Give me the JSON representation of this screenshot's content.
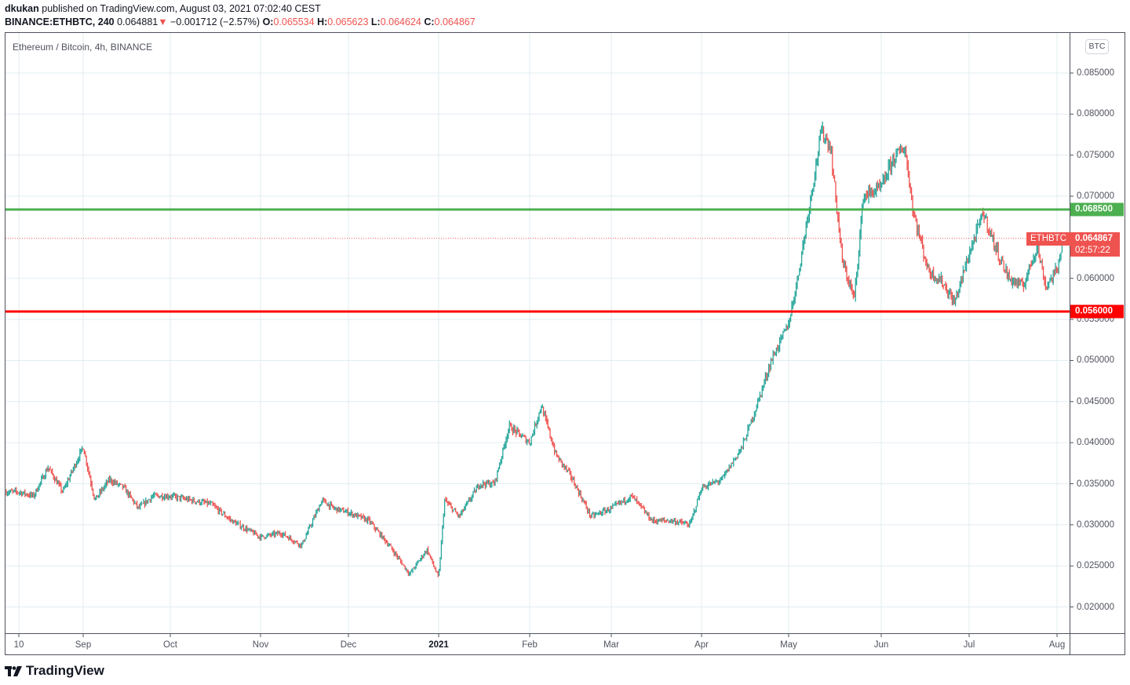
{
  "header": {
    "author": "dkukan",
    "published_text": "published on TradingView.com, August 03, 2021 07:02:40 CEST",
    "symbol": "BINANCE:ETHBTC, 240",
    "last": "0.064881",
    "change_arrow": "▼",
    "change": "−0.001712 (−2.57%)",
    "o_label": "O:",
    "o": "0.065534",
    "h_label": "H:",
    "h": "0.065623",
    "l_label": "L:",
    "l": "0.064624",
    "c_label": "C:",
    "c": "0.064867"
  },
  "legend": {
    "title": "Ethereum / Bitcoin, 4h, BINANCE"
  },
  "price_axis": {
    "currency": "BTC",
    "ticks": [
      "0.085000",
      "0.080000",
      "0.075000",
      "0.070000",
      "0.060000",
      "0.055000",
      "0.050000",
      "0.045000",
      "0.040000",
      "0.035000",
      "0.030000",
      "0.025000",
      "0.020000"
    ]
  },
  "time_axis": {
    "ticks": [
      "10",
      "Sep",
      "Oct",
      "Nov",
      "Dec",
      "2021",
      "Feb",
      "Mar",
      "Apr",
      "May",
      "Jun",
      "Jul",
      "Aug"
    ]
  },
  "levels": {
    "resistance": {
      "value": "0.068500",
      "color": "#4caf50"
    },
    "support": {
      "value": "0.056000",
      "color": "#ff0000"
    }
  },
  "current_price": {
    "symbol_tag": "ETHBTC",
    "price": "0.064867",
    "countdown": "02:57:22",
    "color": "#ef5350"
  },
  "colors": {
    "up": "#26a69a",
    "down": "#ef5350",
    "grid": "#e1ecf2",
    "axis_text": "#50535e"
  },
  "footer": {
    "brand": "TradingView"
  },
  "chart_data": {
    "type": "line",
    "chart_style": "candlestick",
    "title": "Ethereum / Bitcoin, 4h, BINANCE",
    "xlabel": "",
    "ylabel": "BTC",
    "ylim": [
      0.0175,
      0.0875
    ],
    "grid": true,
    "x": [
      "2020-08-10",
      "2020-08-15",
      "2020-08-20",
      "2020-08-25",
      "2020-09-01",
      "2020-09-05",
      "2020-09-10",
      "2020-09-15",
      "2020-09-20",
      "2020-09-25",
      "2020-10-01",
      "2020-10-08",
      "2020-10-15",
      "2020-10-22",
      "2020-11-01",
      "2020-11-08",
      "2020-11-15",
      "2020-11-22",
      "2020-11-26",
      "2020-12-01",
      "2020-12-08",
      "2020-12-15",
      "2020-12-22",
      "2020-12-28",
      "2021-01-01",
      "2021-01-03",
      "2021-01-08",
      "2021-01-15",
      "2021-01-20",
      "2021-01-25",
      "2021-02-01",
      "2021-02-05",
      "2021-02-10",
      "2021-02-15",
      "2021-02-22",
      "2021-03-01",
      "2021-03-08",
      "2021-03-15",
      "2021-03-22",
      "2021-03-28",
      "2021-04-01",
      "2021-04-08",
      "2021-04-15",
      "2021-04-20",
      "2021-04-25",
      "2021-05-01",
      "2021-05-04",
      "2021-05-08",
      "2021-05-12",
      "2021-05-15",
      "2021-05-19",
      "2021-05-23",
      "2021-05-26",
      "2021-06-01",
      "2021-06-05",
      "2021-06-09",
      "2021-06-12",
      "2021-06-17",
      "2021-06-22",
      "2021-06-26",
      "2021-07-01",
      "2021-07-06",
      "2021-07-10",
      "2021-07-15",
      "2021-07-20",
      "2021-07-25",
      "2021-07-28",
      "2021-08-01",
      "2021-08-03"
    ],
    "series": [
      {
        "name": "ETHBTC close (approx.)",
        "values": [
          0.034,
          0.0335,
          0.037,
          0.034,
          0.0395,
          0.033,
          0.0355,
          0.0345,
          0.032,
          0.0335,
          0.0335,
          0.033,
          0.0325,
          0.0305,
          0.0285,
          0.029,
          0.0275,
          0.033,
          0.032,
          0.0315,
          0.0305,
          0.0275,
          0.024,
          0.027,
          0.0235,
          0.033,
          0.031,
          0.035,
          0.035,
          0.042,
          0.04,
          0.0445,
          0.0385,
          0.036,
          0.031,
          0.032,
          0.0335,
          0.0305,
          0.0305,
          0.03,
          0.0345,
          0.0355,
          0.0395,
          0.0445,
          0.05,
          0.0545,
          0.06,
          0.069,
          0.078,
          0.076,
          0.062,
          0.0575,
          0.07,
          0.071,
          0.0745,
          0.076,
          0.068,
          0.061,
          0.0595,
          0.057,
          0.063,
          0.068,
          0.064,
          0.06,
          0.059,
          0.064,
          0.059,
          0.061,
          0.0649
        ]
      }
    ],
    "annotations": [
      {
        "type": "hline",
        "value": 0.0685,
        "color": "#4caf50",
        "label": "0.068500"
      },
      {
        "type": "hline",
        "value": 0.056,
        "color": "#ff0000",
        "label": "0.056000"
      },
      {
        "type": "hline-dotted",
        "value": 0.064867,
        "color": "#ef5350",
        "label": "ETHBTC 0.064867"
      }
    ]
  }
}
